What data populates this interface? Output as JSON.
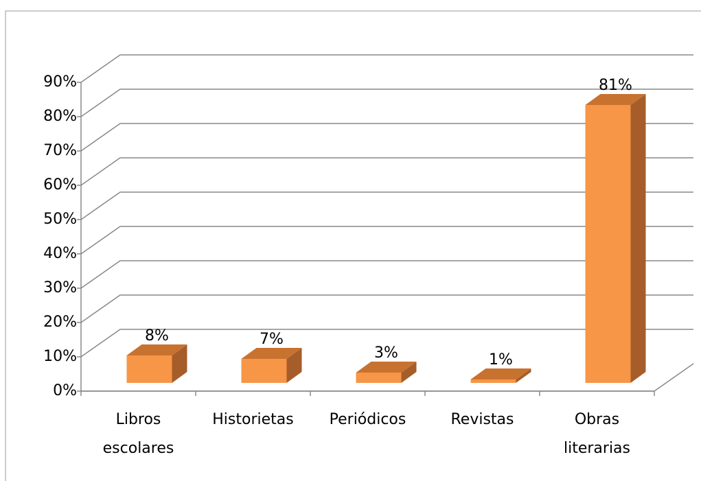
{
  "chart_data": {
    "type": "bar3d",
    "categories": [
      "Libros escolares",
      "Historietas",
      "Periódicos",
      "Revistas",
      "Obras literarias"
    ],
    "values": [
      8,
      7,
      3,
      1,
      81
    ],
    "value_labels": [
      "8%",
      "7%",
      "3%",
      "1%",
      "81%"
    ],
    "color": "#f79646",
    "ylim": [
      0,
      90
    ],
    "yticks": [
      {
        "value": 0,
        "label": "0%"
      },
      {
        "value": 10,
        "label": "10%"
      },
      {
        "value": 20,
        "label": "20%"
      },
      {
        "value": 30,
        "label": "30%"
      },
      {
        "value": 40,
        "label": "40%"
      },
      {
        "value": 50,
        "label": "50%"
      },
      {
        "value": 60,
        "label": "60%"
      },
      {
        "value": 70,
        "label": "70%"
      },
      {
        "value": 80,
        "label": "80%"
      },
      {
        "value": 90,
        "label": "90%"
      }
    ],
    "grid": true
  }
}
